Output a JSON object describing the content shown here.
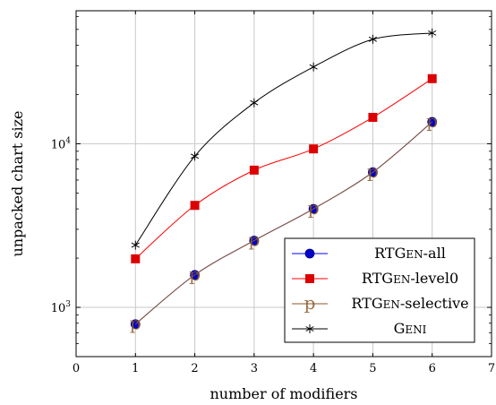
{
  "chart_data": {
    "type": "line",
    "title": "",
    "xlabel": "number of modifiers",
    "ylabel": "unpacked chart size",
    "xlim": [
      0,
      7
    ],
    "ylim": [
      500,
      65000
    ],
    "yscale": "log",
    "grid": true,
    "legend_position": "bottom-right",
    "x_ticks": [
      "0",
      "1",
      "2",
      "3",
      "4",
      "5",
      "6",
      "7"
    ],
    "y_ticks": [
      {
        "value": 1000,
        "base": "10",
        "exp": "3"
      },
      {
        "value": 10000,
        "base": "10",
        "exp": "4"
      }
    ],
    "x": [
      1,
      2,
      3,
      4,
      5,
      6
    ],
    "series": [
      {
        "name": "RTGEN-all",
        "label_main": "RTG",
        "label_sc": "EN",
        "label_tail": "-all",
        "color": "#0000ff",
        "marker_color": "#0000cc",
        "marker": "circle",
        "values": [
          790,
          1580,
          2560,
          4000,
          6700,
          13600
        ]
      },
      {
        "name": "RTGEN-level0",
        "label_main": "RTG",
        "label_sc": "EN",
        "label_tail": "-level0",
        "color": "#ff0000",
        "marker_color": "#dd0000",
        "marker": "square",
        "values": [
          1980,
          4200,
          6900,
          9300,
          14500,
          25000
        ]
      },
      {
        "name": "RTGEN-selective",
        "label_main": "RTG",
        "label_sc": "EN",
        "label_tail": "-selective",
        "color": "#8b5a2b",
        "marker_color": "#8b5a2b",
        "marker": "p",
        "values": [
          790,
          1580,
          2560,
          4000,
          6700,
          13600
        ]
      },
      {
        "name": "GENI",
        "label_main": "G",
        "label_sc": "ENI",
        "label_tail": "",
        "color": "#000000",
        "marker_color": "#000000",
        "marker": "star",
        "values": [
          2400,
          8400,
          17800,
          29500,
          43500,
          47500
        ]
      }
    ]
  }
}
